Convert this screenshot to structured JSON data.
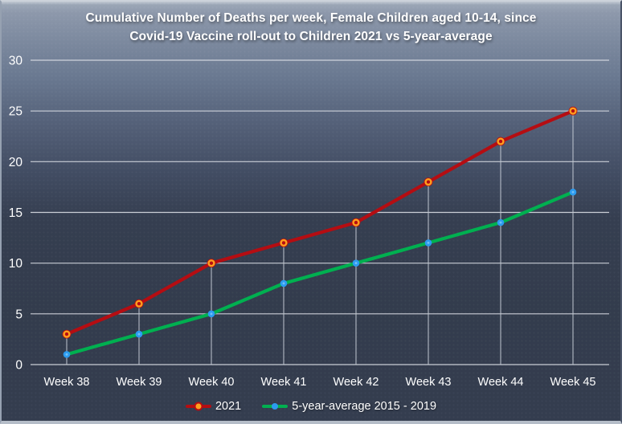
{
  "title": {
    "line1": "Cumulative Number of Deaths per week, Female Children aged 10-14, since",
    "line2": "Covid-19 Vaccine roll-out to Children 2021 vs 5-year-average"
  },
  "chart_data": {
    "type": "line",
    "categories": [
      "Week 38",
      "Week 39",
      "Week 40",
      "Week 41",
      "Week 42",
      "Week 43",
      "Week 44",
      "Week 45"
    ],
    "series": [
      {
        "name": "2021",
        "values": [
          3,
          6,
          10,
          12,
          14,
          18,
          22,
          25
        ],
        "line_color": "#b50d12",
        "marker_fill": "#b50d12",
        "marker_ring": "#ffa01e",
        "drop_lines": true
      },
      {
        "name": "5-year-average 2015 - 2019",
        "values": [
          1,
          3,
          5,
          8,
          10,
          12,
          14,
          17
        ],
        "line_color": "#00b050",
        "marker_fill": "#2c9bf0",
        "marker_ring": "",
        "drop_lines": false
      }
    ],
    "ylim": [
      0,
      30
    ],
    "yticks": [
      0,
      5,
      10,
      15,
      20,
      25,
      30
    ],
    "grid": "horizontal gridlines; vertical drop lines from 2021 series points to x-axis",
    "legend_position": "bottom-center",
    "xlabel": "",
    "ylabel": ""
  },
  "colors": {
    "background_top": "#8d98ab",
    "background_bottom": "#343d4f",
    "gridline": "#d6dae1",
    "drop_line": "#c2c8d2",
    "text": "#ffffff"
  }
}
